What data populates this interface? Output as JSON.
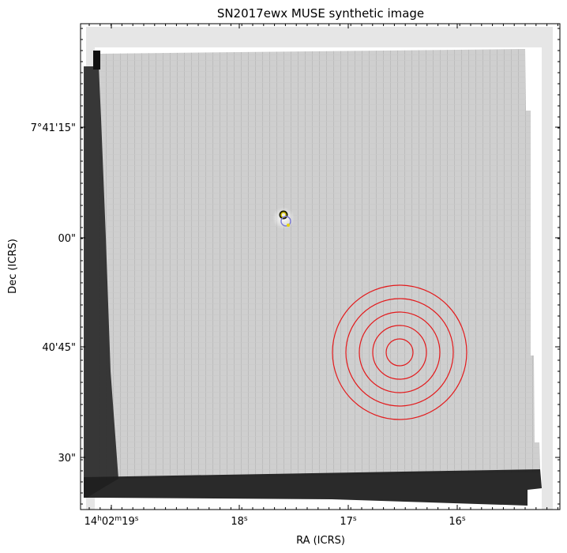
{
  "chart_data": {
    "type": "image",
    "title": "SN2017ewx MUSE synthetic image",
    "xlabel": "RA (ICRS)",
    "ylabel": "Dec (ICRS)",
    "colormap": "grayscale (inverted)",
    "x_ticks": [
      {
        "label_main": "14",
        "sup_h": "h",
        "label_mid": "02",
        "sup_m": "m",
        "label_sec": "19",
        "sup_s": "s"
      },
      {
        "label_sec": "18",
        "sup_s": "s"
      },
      {
        "label_sec": "17",
        "sup_s": "s"
      },
      {
        "label_sec": "16",
        "sup_s": "s"
      }
    ],
    "y_ticks": [
      "7°41'15\"",
      "00\"",
      "40'45\"",
      "30\""
    ],
    "markers": [
      {
        "kind": "circle",
        "color": "#1b1b00",
        "note": "source"
      },
      {
        "kind": "circle",
        "color": "#d8c400",
        "note": "source"
      },
      {
        "kind": "circle",
        "color": "#7b7bd8",
        "note": "host"
      }
    ],
    "rings": {
      "count": 5,
      "color": "#e31a1c"
    }
  },
  "colors": {
    "ring": "#e31a1c",
    "frame": "#000000",
    "background": "#ffffff"
  }
}
